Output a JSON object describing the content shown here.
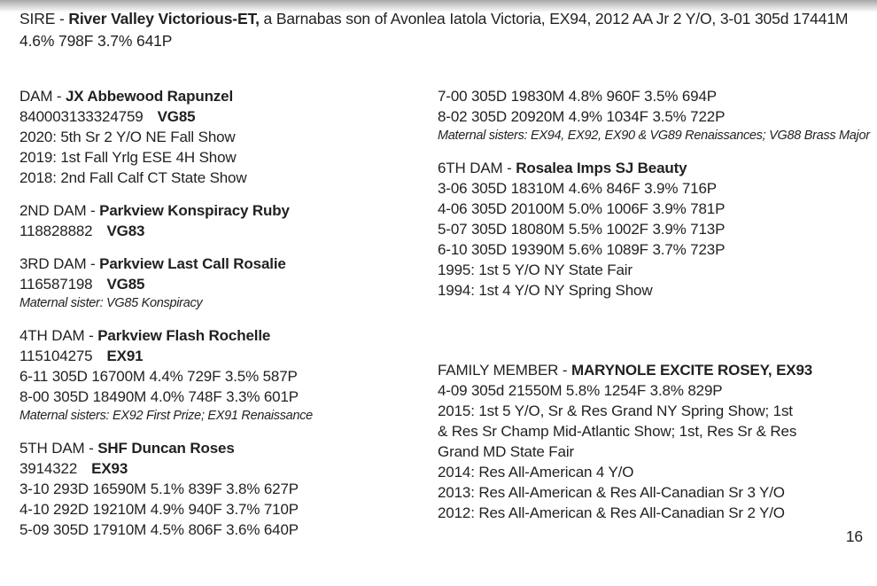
{
  "theme": {
    "text_color": "#231f20",
    "header_gradient_top": "#a9a9a9",
    "header_gradient_bottom": "#ffffff"
  },
  "page_number": "16",
  "sire": {
    "label": "SIRE - ",
    "name": "River Valley Victorious-ET,",
    "rest": " a Barnabas son of Avonlea Iatola Victoria, EX94, 2012 AA Jr 2 Y/O, 3-01 305d 17441M 4.6% 798F 3.7% 641P"
  },
  "left_column": [
    {
      "label": "DAM - ",
      "name": "JX Abbewood Rapunzel",
      "reg": "840003133324759",
      "score": "VG85",
      "lines": [
        "2020: 5th Sr 2 Y/O NE Fall Show",
        "2019: 1st Fall Yrlg ESE 4H Show",
        "2018: 2nd Fall Calf CT State Show"
      ]
    },
    {
      "label": "2ND DAM - ",
      "name": "Parkview Konspiracy Ruby",
      "reg": "118828882",
      "score": "VG83"
    },
    {
      "label": "3RD DAM - ",
      "name": "Parkview Last Call Rosalie",
      "reg": "116587198",
      "score": "VG85",
      "note": "Maternal sister: VG85 Konspiracy"
    },
    {
      "label": "4TH DAM - ",
      "name": "Parkview Flash Rochelle",
      "reg": "115104275",
      "score": "EX91",
      "lines": [
        "6-11 305D 16700M 4.4% 729F 3.5% 587P",
        "8-00 305D 18490M 4.0% 748F 3.3% 601P"
      ],
      "note": "Maternal sisters: EX92 First Prize; EX91 Renaissance"
    },
    {
      "label": "5TH DAM - ",
      "name": "SHF Duncan Roses",
      "reg": "3914322",
      "score": "EX93",
      "lines": [
        "3-10 293D 16590M 5.1% 839F 3.8% 627P",
        "4-10 292D 19210M 4.9% 940F 3.7% 710P",
        "5-09 305D 17910M 4.5% 806F 3.6% 640P"
      ]
    }
  ],
  "right_column": [
    {
      "lines": [
        "7-00 305D 19830M 4.8% 960F 3.5% 694P",
        "8-02 305D 20920M 4.9% 1034F 3.5% 722P"
      ],
      "note": "Maternal sisters: EX94, EX92, EX90 & VG89 Renaissances; VG88 Brass Major"
    },
    {
      "label": "6TH DAM - ",
      "name": "Rosalea Imps SJ Beauty",
      "lines": [
        "3-06 305D 18310M 4.6% 846F 3.9% 716P",
        "4-06 305D 20100M 5.0% 1006F 3.9% 781P",
        "5-07 305D 18080M 5.5% 1002F 3.9% 713P",
        "6-10 305D 19390M 5.6% 1089F 3.7% 723P",
        "1995: 1st 5 Y/O NY State Fair",
        "1994: 1st 4 Y/O NY Spring Show"
      ]
    },
    {
      "label": "FAMILY MEMBER - ",
      "name": "MARYNOLE EXCITE ROSEY, EX93",
      "lines": [
        "4-09 305d 21550M 5.8% 1254F 3.8% 829P",
        "2015: 1st 5 Y/O, Sr & Res Grand NY Spring Show; 1st",
        "& Res Sr Champ Mid-Atlantic Show; 1st, Res Sr & Res",
        "Grand MD State Fair",
        "2014: Res All-American 4 Y/O",
        "2013: Res All-American & Res All-Canadian Sr 3 Y/O",
        "2012: Res All-American & Res All-Canadian Sr 2 Y/O"
      ]
    }
  ]
}
